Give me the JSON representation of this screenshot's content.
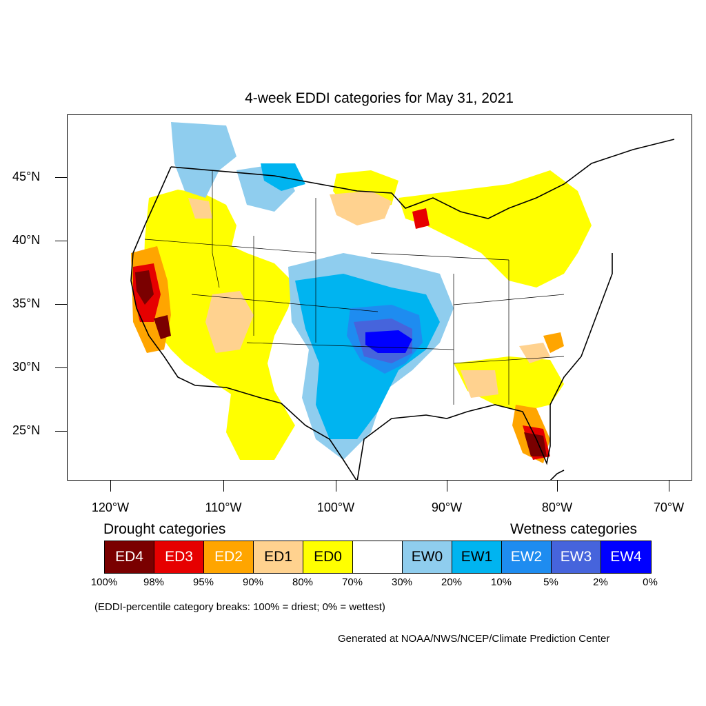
{
  "title": "4-week EDDI categories for May 31, 2021",
  "axes": {
    "lat_labels": [
      "45°N",
      "40°N",
      "35°N",
      "30°N",
      "25°N"
    ],
    "lon_labels": [
      "120°W",
      "110°W",
      "100°W",
      "90°W",
      "80°W",
      "70°W"
    ]
  },
  "legend": {
    "drought_heading": "Drought categories",
    "wetness_heading": "Wetness categories",
    "categories": [
      {
        "label": "ED4",
        "color": "#7a0000",
        "text_color": "#ffffff"
      },
      {
        "label": "ED3",
        "color": "#e60000",
        "text_color": "#ffffff"
      },
      {
        "label": "ED2",
        "color": "#ffa500",
        "text_color": "#ffffff"
      },
      {
        "label": "ED1",
        "color": "#ffd28f",
        "text_color": "#000000"
      },
      {
        "label": "ED0",
        "color": "#ffff00",
        "text_color": "#000000"
      },
      {
        "label": "",
        "color": "#ffffff",
        "text_color": "#000000"
      },
      {
        "label": "EW0",
        "color": "#8fcdee",
        "text_color": "#000000"
      },
      {
        "label": "EW1",
        "color": "#00b4f0",
        "text_color": "#000000"
      },
      {
        "label": "EW2",
        "color": "#1e8cf0",
        "text_color": "#ffffff"
      },
      {
        "label": "EW3",
        "color": "#4664dc",
        "text_color": "#ffffff"
      },
      {
        "label": "EW4",
        "color": "#0000ff",
        "text_color": "#ffffff"
      }
    ],
    "percentiles": [
      "100%",
      "98%",
      "95%",
      "90%",
      "80%",
      "70%",
      "30%",
      "20%",
      "10%",
      "5%",
      "2%",
      "0%"
    ]
  },
  "note": "(EDDI-percentile category breaks: 100% = driest; 0% = wettest)",
  "credit": "Generated at NOAA/NWS/NCEP/Climate Prediction Center"
}
